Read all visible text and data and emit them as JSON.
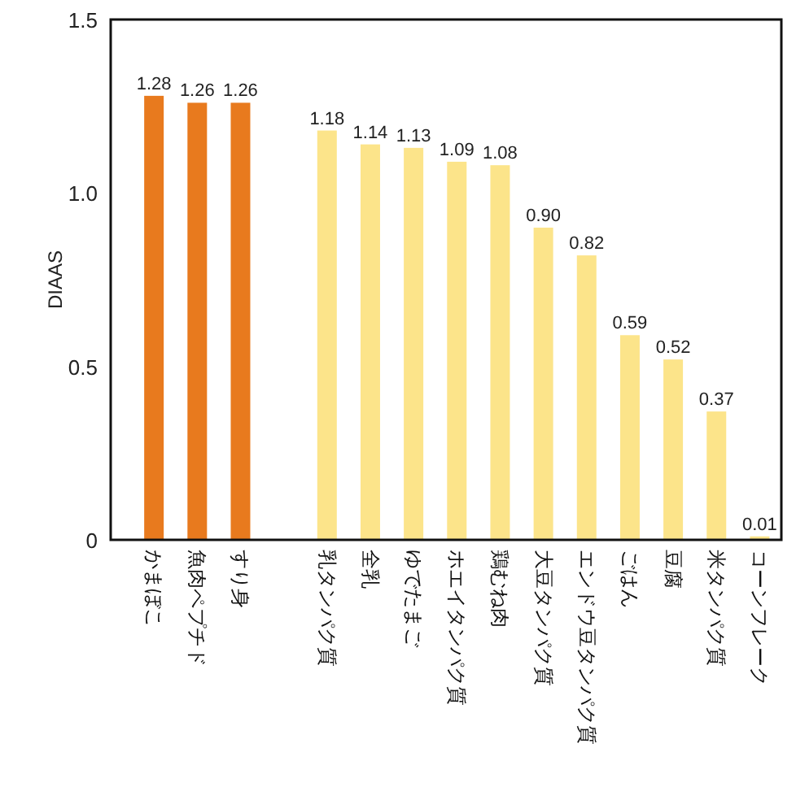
{
  "chart_data": {
    "type": "bar",
    "ylabel": "DIAAS",
    "categories": [
      "かまぼこ",
      "魚肉ペプチド",
      "すり身",
      null,
      "乳タンパク質",
      "全乳",
      "ゆでたまご",
      "ホエイタンパク質",
      "鶏むね肉",
      "大豆タンパク質",
      "エンドウ豆タンパク質",
      "ごはん",
      "豆腐",
      "米タンパク質",
      "コーンフレーク"
    ],
    "values": [
      1.28,
      1.26,
      1.26,
      null,
      1.18,
      1.14,
      1.13,
      1.09,
      1.08,
      0.9,
      0.82,
      0.59,
      0.52,
      0.37,
      0.01
    ],
    "value_labels": [
      "1.28",
      "1.26",
      "1.26",
      null,
      "1.18",
      "1.14",
      "1.13",
      "1.09",
      "1.08",
      "0.90",
      "0.82",
      "0.59",
      "0.52",
      "0.37",
      "0.01"
    ],
    "colors": [
      "#e87a1e",
      "#e87a1e",
      "#e87a1e",
      null,
      "#fce48a",
      "#fce48a",
      "#fce48a",
      "#fce48a",
      "#fce48a",
      "#fce48a",
      "#fce48a",
      "#fce48a",
      "#fce48a",
      "#fce48a",
      "#fce48a"
    ],
    "ylim": [
      0,
      1.5
    ],
    "yticks": [
      0,
      {
        "value": 0.5,
        "label": "0.5"
      },
      {
        "value": 1,
        "label": "1.0"
      },
      1.5
    ]
  }
}
